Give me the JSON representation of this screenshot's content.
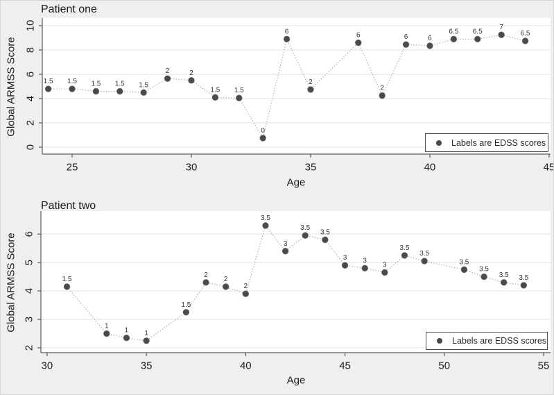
{
  "colors": {
    "figure_background": "#efefef",
    "plot_background": "#ffffff",
    "gridline": "#e2e2e2",
    "axis_line": "#5a5a5a",
    "tick_label": "#1f1f1f",
    "marker": "#4a4a4a",
    "dotted_line": "#9a9a9a",
    "point_label": "#333333"
  },
  "chart_data": [
    {
      "type": "scatter",
      "title": "Patient one",
      "xlabel": "Age",
      "ylabel": "Global ARMSS Score",
      "legend": "Labels are EDSS scores",
      "legend_position": "bottom-right",
      "grid": "horizontal only",
      "line_style": "dotted",
      "x": [
        24,
        25,
        26,
        27,
        28,
        29,
        30,
        31,
        32,
        33,
        34,
        35,
        37,
        38,
        39,
        40,
        41,
        42,
        43,
        44
      ],
      "y": [
        4.8,
        4.8,
        4.6,
        4.6,
        4.5,
        5.65,
        5.5,
        4.1,
        4.05,
        0.75,
        8.9,
        4.75,
        8.6,
        4.25,
        8.45,
        8.35,
        8.9,
        8.9,
        9.25,
        8.75
      ],
      "point_labels": [
        "1.5",
        "1.5",
        "1.5",
        "1.5",
        "1.5",
        "2",
        "2",
        "1.5",
        "1.5",
        "0",
        "6",
        "2",
        "6",
        "2",
        "6",
        "6",
        "6.5",
        "6.5",
        "7",
        "6.5"
      ],
      "xticks": [
        25,
        30,
        35,
        40,
        45
      ],
      "yticks": [
        0,
        2,
        4,
        6,
        8,
        10
      ],
      "xlim": [
        23.75,
        45.06
      ],
      "ylim": [
        -0.57,
        10.63
      ]
    },
    {
      "type": "scatter",
      "title": "Patient two",
      "xlabel": "Age",
      "ylabel": "Global ARMSS Score",
      "legend": "Labels are EDSS scores",
      "legend_position": "bottom-right",
      "grid": "horizontal only",
      "line_style": "dotted",
      "x": [
        31,
        33,
        34,
        35,
        37,
        38,
        39,
        40,
        41,
        42,
        43,
        44,
        45,
        46,
        47,
        48,
        49,
        51,
        52,
        53,
        54
      ],
      "y": [
        4.15,
        2.5,
        2.35,
        2.25,
        3.25,
        4.3,
        4.15,
        3.9,
        6.3,
        5.4,
        5.95,
        5.8,
        4.9,
        4.8,
        4.65,
        5.25,
        5.05,
        4.75,
        4.5,
        4.3,
        4.2
      ],
      "point_labels": [
        "1.5",
        "1",
        "1",
        "1",
        "1.5",
        "2",
        "2",
        "2",
        "3.5",
        "3",
        "3.5",
        "3.5",
        "3",
        "3",
        "3",
        "3.5",
        "3.5",
        "3.5",
        "3.5",
        "3.5",
        "3.5"
      ],
      "xticks": [
        30,
        35,
        40,
        45,
        50,
        55
      ],
      "yticks": [
        2,
        3,
        4,
        5,
        6
      ],
      "xlim": [
        29.69,
        55.35
      ],
      "ylim": [
        1.83,
        6.81
      ]
    }
  ]
}
